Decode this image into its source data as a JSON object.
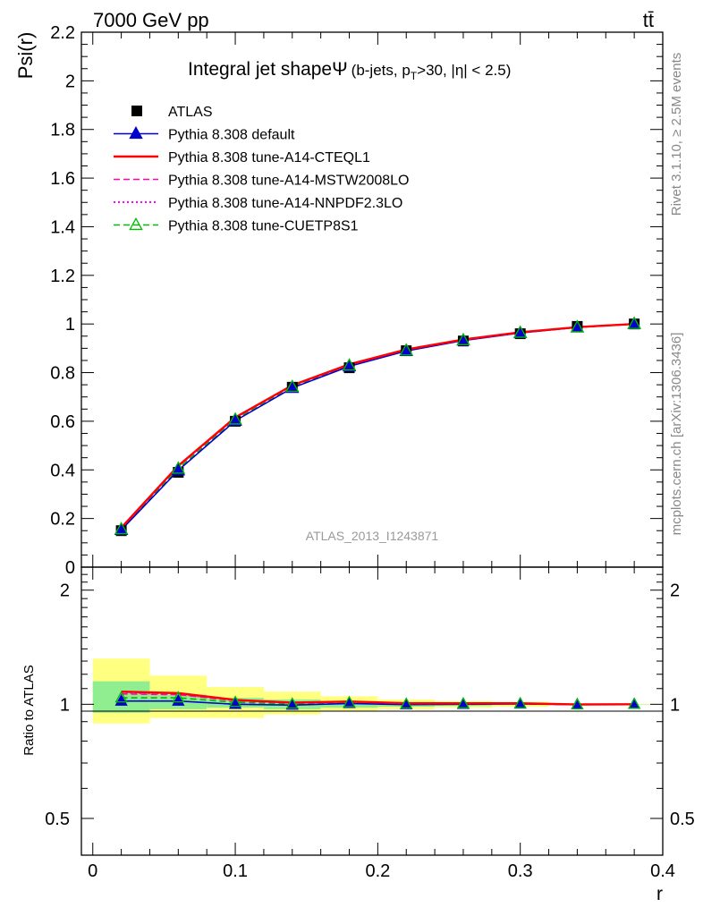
{
  "header": {
    "energy": "7000 GeV pp",
    "process": "tt̄"
  },
  "side_labels": {
    "rivet": "Rivet 3.1.10, ≥ 2.5M events",
    "source": "mcplots.cern.ch [arXiv:1306.3436]"
  },
  "chart_data": [
    {
      "type": "line",
      "title": "Integral jet shape Ψ (b-jets, pT>30, |η| < 2.5)",
      "title_parts": {
        "main": "Integral jet shape",
        "psi": "Ψ",
        "cond_a": "(b-jets, p",
        "cond_sub": "T",
        "cond_b": ">30, |η| < 2.5)"
      },
      "ylabel": "Psi(r)",
      "xlabel": "r",
      "watermark": "ATLAS_2013_I1243871",
      "xlim": [
        -0.008,
        0.4
      ],
      "ylim": [
        0,
        2.2
      ],
      "yticks": [
        0.2,
        0.4,
        0.6,
        0.8,
        1,
        1.2,
        1.4,
        1.6,
        1.8,
        2,
        2.2
      ],
      "ytick_labels": [
        "0.2",
        "0.4",
        "0.6",
        "0.8",
        "1",
        "1.2",
        "1.4",
        "1.6",
        "1.8",
        "2",
        "2.2"
      ],
      "ybottom_label": "0",
      "x": [
        0.02,
        0.06,
        0.1,
        0.14,
        0.18,
        0.22,
        0.26,
        0.3,
        0.34,
        0.38
      ],
      "legend_position": "top-left",
      "series": [
        {
          "name": "ATLAS",
          "color": "#000000",
          "style": "data",
          "values": [
            0.15,
            0.39,
            0.6,
            0.74,
            0.82,
            0.89,
            0.93,
            0.96,
            0.99,
            1.0
          ]
        },
        {
          "name": "Pythia 8.308 default",
          "color": "#0000cc",
          "style": "solid-triangle",
          "values": [
            0.153,
            0.398,
            0.602,
            0.737,
            0.826,
            0.889,
            0.932,
            0.963,
            0.986,
            1.0
          ]
        },
        {
          "name": "Pythia 8.308 tune-A14-CTEQL1",
          "color": "#ff0000",
          "style": "solid-thick",
          "values": [
            0.162,
            0.417,
            0.616,
            0.748,
            0.834,
            0.895,
            0.936,
            0.966,
            0.987,
            1.0
          ]
        },
        {
          "name": "Pythia 8.308 tune-A14-MSTW2008LO",
          "color": "#ff00aa",
          "style": "dashed",
          "values": [
            0.16,
            0.414,
            0.613,
            0.746,
            0.832,
            0.894,
            0.935,
            0.965,
            0.987,
            1.0
          ]
        },
        {
          "name": "Pythia 8.308 tune-A14-NNPDF2.3LO",
          "color": "#ff00ff",
          "style": "dotted",
          "values": [
            0.161,
            0.415,
            0.614,
            0.747,
            0.833,
            0.894,
            0.935,
            0.965,
            0.987,
            1.0
          ]
        },
        {
          "name": "Pythia 8.308 tune-CUETP8S1",
          "color": "#00bb00",
          "style": "dashed-open-triangle",
          "values": [
            0.156,
            0.405,
            0.607,
            0.741,
            0.829,
            0.891,
            0.933,
            0.964,
            0.986,
            1.0
          ]
        }
      ]
    },
    {
      "type": "line",
      "ylabel": "Ratio to ATLAS",
      "xlabel": "r",
      "xlim": [
        -0.008,
        0.4
      ],
      "ylim": [
        0.4,
        2.3
      ],
      "log_y": true,
      "yticks": [
        0.5,
        1,
        2
      ],
      "ytick_labels": [
        "0.5",
        "1",
        "2"
      ],
      "xticks": [
        0,
        0.1,
        0.2,
        0.3,
        0.4
      ],
      "xtick_labels": [
        "0",
        "0.1",
        "0.2",
        "0.3",
        "0.4"
      ],
      "x_edges": [
        0,
        0.04,
        0.08,
        0.12,
        0.16,
        0.2,
        0.24,
        0.28,
        0.32,
        0.36,
        0.4
      ],
      "band_stat": {
        "color": "#90ee90",
        "lower": [
          0.95,
          0.97,
          0.98,
          0.97,
          0.98,
          0.985,
          0.99,
          0.995,
          0.998,
          0.999
        ],
        "upper": [
          1.15,
          1.06,
          1.04,
          1.03,
          1.02,
          1.015,
          1.01,
          1.005,
          1.002,
          1.001
        ]
      },
      "band_total": {
        "color": "#ffff80",
        "lower": [
          0.89,
          0.92,
          0.92,
          0.94,
          0.96,
          0.97,
          0.98,
          0.985,
          0.995,
          0.998
        ],
        "upper": [
          1.32,
          1.19,
          1.11,
          1.08,
          1.05,
          1.03,
          1.02,
          1.015,
          1.005,
          1.002
        ]
      },
      "x": [
        0.02,
        0.06,
        0.1,
        0.14,
        0.18,
        0.22,
        0.26,
        0.3,
        0.34,
        0.38
      ],
      "series": [
        {
          "name": "Pythia 8.308 default",
          "color": "#0000cc",
          "style": "solid-triangle",
          "values": [
            1.02,
            1.02,
            1.0,
            0.995,
            1.005,
            0.998,
            1.0,
            1.002,
            0.998,
            1.0
          ]
        },
        {
          "name": "Pythia 8.308 tune-A14-CTEQL1",
          "color": "#ff0000",
          "style": "solid-thick",
          "values": [
            1.08,
            1.07,
            1.027,
            1.01,
            1.017,
            1.006,
            1.006,
            1.006,
            0.999,
            1.0
          ]
        },
        {
          "name": "Pythia 8.308 tune-A14-MSTW2008LO",
          "color": "#ff00aa",
          "style": "dashed",
          "values": [
            1.065,
            1.06,
            1.022,
            1.008,
            1.015,
            1.005,
            1.005,
            1.005,
            0.999,
            1.0
          ]
        },
        {
          "name": "Pythia 8.308 tune-A14-NNPDF2.3LO",
          "color": "#ff00ff",
          "style": "dotted",
          "values": [
            1.072,
            1.064,
            1.024,
            1.009,
            1.016,
            1.005,
            1.005,
            1.005,
            0.999,
            1.0
          ]
        },
        {
          "name": "Pythia 8.308 tune-CUETP8S1",
          "color": "#00bb00",
          "style": "dashed-open-triangle",
          "values": [
            1.04,
            1.04,
            1.012,
            1.001,
            1.01,
            1.001,
            1.003,
            1.004,
            0.997,
            1.0
          ]
        }
      ]
    }
  ]
}
